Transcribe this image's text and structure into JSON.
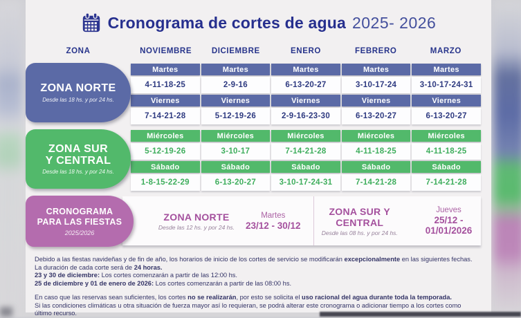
{
  "title": {
    "main": "Cronograma de cortes de agua",
    "years": "2025- 2026"
  },
  "columns": {
    "zone_header": "ZONA",
    "months": [
      "NOVIEMBRE",
      "DICIEMBRE",
      "ENERO",
      "FEBRERO",
      "MARZO"
    ]
  },
  "zones": [
    {
      "id": "norte",
      "name_lines": [
        "ZONA NORTE"
      ],
      "subtitle": "Desde las 18 hs. y por 24 hs.",
      "bar_color": "#5b6aa6",
      "date_text_color": "#2e3a80",
      "rows": [
        {
          "day": "Martes",
          "dates": [
            "4-11-18-25",
            "2-9-16",
            "6-13-20-27",
            "3-10-17-24",
            "3-10-17-24-31"
          ]
        },
        {
          "day": "Viernes",
          "dates": [
            "7-14-21-28",
            "5-12-19-26",
            "2-9-16-23-30",
            "6-13-20-27",
            "6-13-20-27"
          ]
        }
      ]
    },
    {
      "id": "sur-central",
      "name_lines": [
        "ZONA SUR",
        "Y CENTRAL"
      ],
      "subtitle": "Desde las 18 hs. y por 24 hs.",
      "bar_color": "#52b96b",
      "date_text_color": "#3fae5d",
      "rows": [
        {
          "day": "Miércoles",
          "dates": [
            "5-12-19-26",
            "3-10-17",
            "7-14-21-28",
            "4-11-18-25",
            "4-11-18-25"
          ]
        },
        {
          "day": "Sábado",
          "dates": [
            "1-8-15-22-29",
            "6-13-20-27",
            "3-10-17-24-31",
            "7-14-21-28",
            "7-14-21-28"
          ]
        }
      ]
    }
  ],
  "fiestas": {
    "pill_lines": [
      "CRONOGRAMA",
      "PARA LAS FIESTAS"
    ],
    "pill_sub": "2025/2026",
    "accent_color": "#b46cae",
    "entries": [
      {
        "zone": "ZONA NORTE",
        "subtitle": "Desde las 12 hs. y por 24 hs.",
        "day": "Martes",
        "dates": "23/12 - 30/12"
      },
      {
        "zone": "ZONA SUR Y CENTRAL",
        "subtitle": "Desde las 08 hs. y por 24 hs.",
        "day": "Jueves",
        "dates": "25/12 - 01/01/2026"
      }
    ]
  },
  "notes": {
    "block1": [
      [
        {
          "t": "Debido a las fiestas navideñas y de fin de año, los horarios de inicio de los cortes de servicio se modificarán "
        },
        {
          "t": "excepcionalmente",
          "b": true
        },
        {
          "t": " en las siguientes fechas."
        }
      ],
      [
        {
          "t": "La duración de cada corte será de "
        },
        {
          "t": "24 horas.",
          "b": true
        }
      ],
      [
        {
          "t": "23 y 30 de diciembre:",
          "b": true
        },
        {
          "t": " Los cortes comenzarán a partir de las 12:00 hs."
        }
      ],
      [
        {
          "t": "25 de diciembre y 01 de enero de 2026:",
          "b": true
        },
        {
          "t": " Los cortes comenzarán a partir de las 08:00 hs."
        }
      ]
    ],
    "block2": [
      [
        {
          "t": "En caso que las reservas sean suficientes, los cortes "
        },
        {
          "t": "no se realizarán",
          "b": true
        },
        {
          "t": ", por esto se solicita el "
        },
        {
          "t": "uso racional del agua durante toda la temporada.",
          "b": true
        }
      ],
      [
        {
          "t": "Si las condiciones climáticas u otra situación de fuerza mayor así lo requieran, se podrá alterar este cronograma o adicionar tiempo a los cortes como último recurso."
        }
      ]
    ]
  },
  "colors": {
    "title_navy": "#262f8e",
    "zone_norte_blue": "#5b6aa6",
    "zone_sur_green": "#52b96b",
    "fiestas_purple": "#b46cae",
    "notes_navy": "#333366",
    "sheet_bg": "#f2f0f1"
  }
}
